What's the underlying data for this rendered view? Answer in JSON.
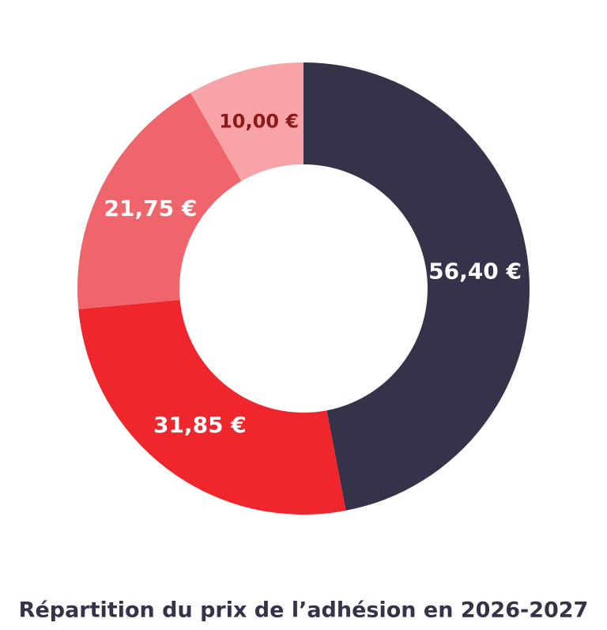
{
  "chart_data": {
    "type": "donut",
    "title": "Répartition du prix de l’adhésion en 2026-2027",
    "values": [
      56.4,
      31.85,
      21.75,
      10.0
    ],
    "value_labels": [
      "56,40 €",
      "31,85 €",
      "21,75 €",
      "10,00 €"
    ],
    "colors": [
      "#35334a",
      "#ef262c",
      "#f0646b",
      "#f7a3a7"
    ],
    "label_colors": [
      "#ffffff",
      "#ffffff",
      "#ffffff",
      "#8b1a1a"
    ]
  }
}
